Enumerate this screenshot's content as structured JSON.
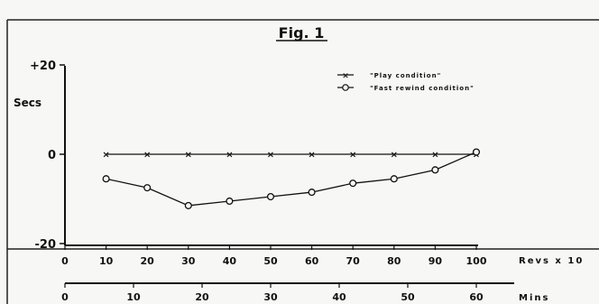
{
  "chart_data": {
    "type": "line",
    "title": "Fig. 1",
    "ylabel": "Secs",
    "ylim": [
      -20,
      20
    ],
    "yticks": [
      "+20",
      "0",
      "-20"
    ],
    "xlabel": "Revs x 10",
    "xlim": [
      0,
      100
    ],
    "xticks": [
      "0",
      "10",
      "20",
      "30",
      "40",
      "50",
      "60",
      "70",
      "80",
      "90",
      "100"
    ],
    "secondary_axis": {
      "label": "Mins",
      "ticks": [
        "0",
        "10",
        "20",
        "30",
        "40",
        "50",
        "60"
      ]
    },
    "legend_position": "top-right",
    "grid": false,
    "series": [
      {
        "name": "\"Play condition\"",
        "marker": "x",
        "x": [
          10,
          20,
          30,
          40,
          50,
          60,
          70,
          80,
          90,
          100
        ],
        "y": [
          0,
          0,
          0,
          0,
          0,
          0,
          0,
          0,
          0,
          0
        ]
      },
      {
        "name": "\"Fast rewind condition\"",
        "marker": "o",
        "x": [
          10,
          20,
          30,
          40,
          50,
          60,
          70,
          80,
          90,
          100
        ],
        "y": [
          -5.5,
          -7.5,
          -11.5,
          -10.5,
          -9.5,
          -8.5,
          -6.5,
          -5.5,
          -3.5,
          0.5
        ]
      }
    ],
    "colors": {
      "ink": "#111111",
      "background": "#f7f7f5"
    }
  }
}
